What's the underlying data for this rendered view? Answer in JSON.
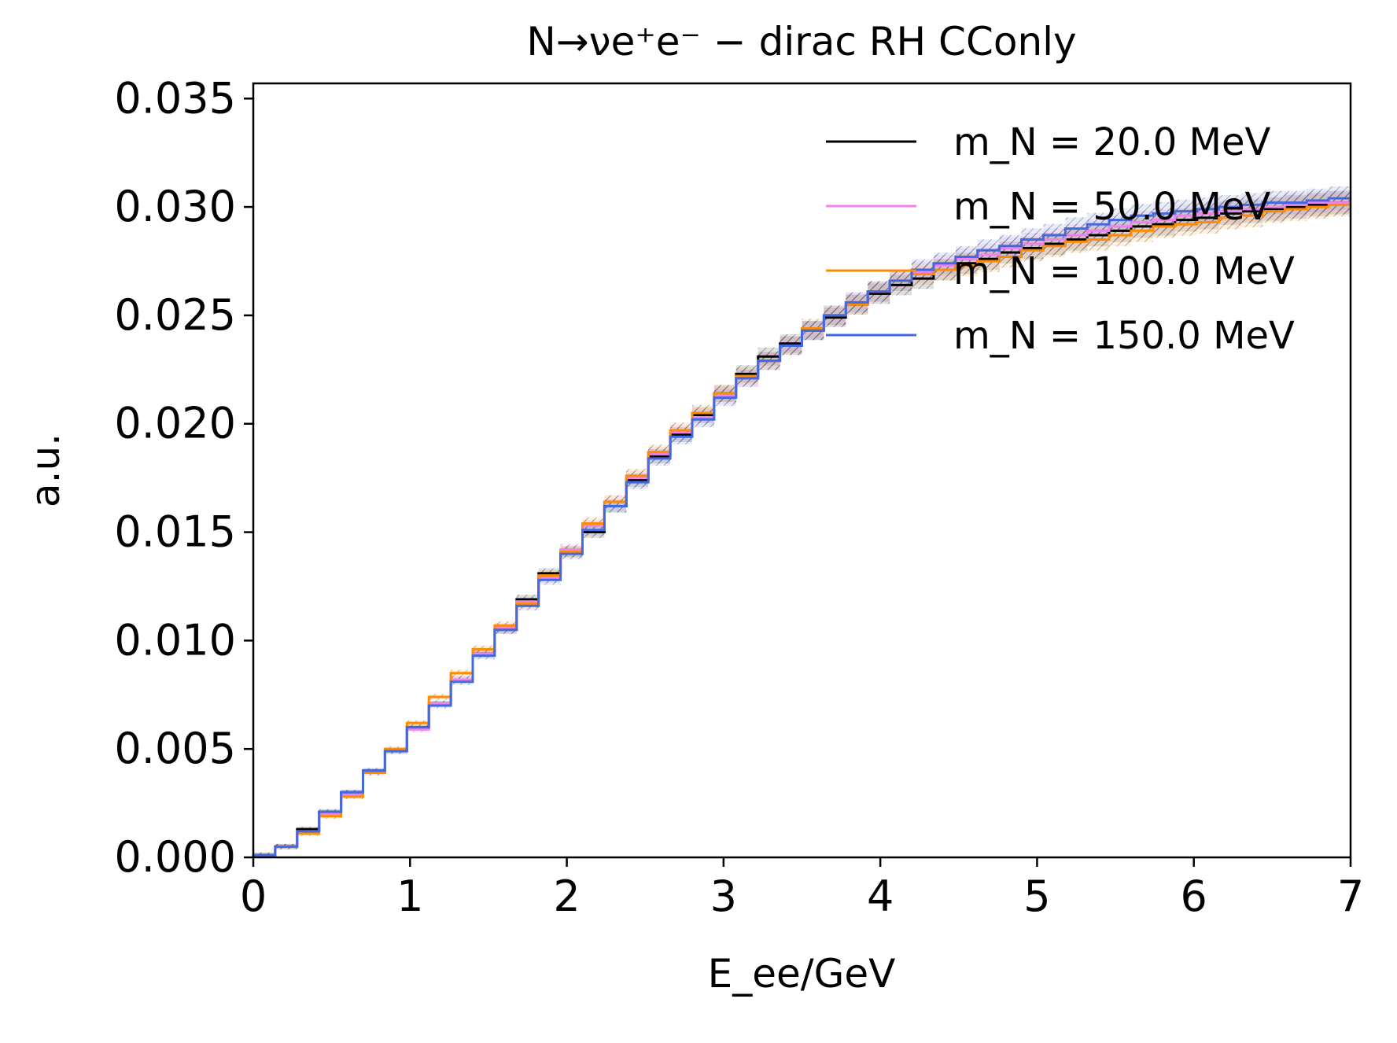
{
  "chart_data": {
    "type": "line",
    "title": "N→νe⁺e⁻ − dirac RH CConly",
    "xlabel": "E_ee/GeV",
    "ylabel": "a.u.",
    "xlim": [
      0,
      7
    ],
    "ylim": [
      0,
      0.0357
    ],
    "xticks": [
      0,
      1,
      2,
      3,
      4,
      5,
      6,
      7
    ],
    "yticks": [
      0.0,
      0.005,
      0.01,
      0.015,
      0.02,
      0.025,
      0.03,
      0.035
    ],
    "xtick_labels": [
      "0",
      "1",
      "2",
      "3",
      "4",
      "5",
      "6",
      "7"
    ],
    "ytick_labels": [
      "0.000",
      "0.005",
      "0.010",
      "0.015",
      "0.020",
      "0.025",
      "0.030",
      "0.035"
    ],
    "grid": false,
    "legend_position": "top-right",
    "histogram": "step",
    "error_band": "hatched",
    "bin_edges": [
      0,
      0.14,
      0.28,
      0.42,
      0.56,
      0.7,
      0.84,
      0.98,
      1.12,
      1.26,
      1.4,
      1.54,
      1.68,
      1.82,
      1.96,
      2.1,
      2.24,
      2.38,
      2.52,
      2.66,
      2.8,
      2.94,
      3.08,
      3.22,
      3.36,
      3.5,
      3.64,
      3.78,
      3.92,
      4.06,
      4.2,
      4.34,
      4.48,
      4.62,
      4.76,
      4.9,
      5.04,
      5.18,
      5.32,
      5.46,
      5.6,
      5.74,
      5.88,
      6.02,
      6.16,
      6.3,
      6.44,
      6.58,
      6.72,
      6.86,
      7.0
    ],
    "series": [
      {
        "name": "m_N = 20.0 MeV",
        "color": "#000000",
        "values": [
          0.0001,
          0.0005,
          0.0013,
          0.0021,
          0.003,
          0.004,
          0.0049,
          0.006,
          0.0071,
          0.0082,
          0.0094,
          0.0105,
          0.0119,
          0.0131,
          0.0141,
          0.015,
          0.0162,
          0.0174,
          0.0185,
          0.0195,
          0.0204,
          0.0214,
          0.0223,
          0.0231,
          0.0237,
          0.0243,
          0.0249,
          0.0255,
          0.026,
          0.0264,
          0.0267,
          0.0271,
          0.0274,
          0.0276,
          0.0279,
          0.0281,
          0.0283,
          0.0285,
          0.0287,
          0.0289,
          0.0291,
          0.0292,
          0.0294,
          0.0295,
          0.0297,
          0.0298,
          0.0299,
          0.03,
          0.0301,
          0.0302
        ]
      },
      {
        "name": "m_N = 50.0 MeV",
        "color": "#ee82ee",
        "values": [
          0.0001,
          0.0005,
          0.0012,
          0.002,
          0.0029,
          0.0039,
          0.0049,
          0.0059,
          0.0071,
          0.0082,
          0.0094,
          0.0106,
          0.0118,
          0.0129,
          0.0142,
          0.0153,
          0.0164,
          0.0175,
          0.0186,
          0.0196,
          0.0203,
          0.0213,
          0.0221,
          0.0229,
          0.0236,
          0.0243,
          0.025,
          0.0256,
          0.0261,
          0.0266,
          0.027,
          0.0273,
          0.0276,
          0.0278,
          0.0281,
          0.0283,
          0.0285,
          0.0287,
          0.0289,
          0.0291,
          0.0293,
          0.0294,
          0.0296,
          0.0297,
          0.0298,
          0.0299,
          0.03,
          0.0301,
          0.0302,
          0.0302
        ]
      },
      {
        "name": "m_N = 100.0 MeV",
        "color": "#ff8c00",
        "values": [
          0.0001,
          0.0005,
          0.0011,
          0.0019,
          0.0028,
          0.0039,
          0.005,
          0.0062,
          0.0074,
          0.0085,
          0.0096,
          0.0107,
          0.0117,
          0.013,
          0.0141,
          0.0154,
          0.0164,
          0.0176,
          0.0187,
          0.0197,
          0.0205,
          0.0214,
          0.0222,
          0.0229,
          0.0236,
          0.0244,
          0.025,
          0.0255,
          0.0261,
          0.0266,
          0.0269,
          0.0271,
          0.0273,
          0.0275,
          0.0277,
          0.028,
          0.0282,
          0.0284,
          0.0285,
          0.0287,
          0.0289,
          0.0291,
          0.0292,
          0.0293,
          0.0295,
          0.0296,
          0.0298,
          0.0299,
          0.03,
          0.0301
        ]
      },
      {
        "name": "m_N = 150.0 MeV",
        "color": "#4169e1",
        "values": [
          0.0001,
          0.0005,
          0.0012,
          0.0021,
          0.003,
          0.004,
          0.0049,
          0.006,
          0.007,
          0.0081,
          0.0093,
          0.0105,
          0.0116,
          0.0128,
          0.014,
          0.0151,
          0.0162,
          0.0173,
          0.0184,
          0.0194,
          0.0202,
          0.0212,
          0.0221,
          0.0229,
          0.0236,
          0.0243,
          0.025,
          0.0256,
          0.0261,
          0.0266,
          0.0271,
          0.0274,
          0.0277,
          0.028,
          0.0282,
          0.0285,
          0.0287,
          0.029,
          0.0292,
          0.0294,
          0.0296,
          0.0297,
          0.0298,
          0.0299,
          0.03,
          0.0301,
          0.0302,
          0.0302,
          0.0303,
          0.0304
        ]
      }
    ]
  }
}
